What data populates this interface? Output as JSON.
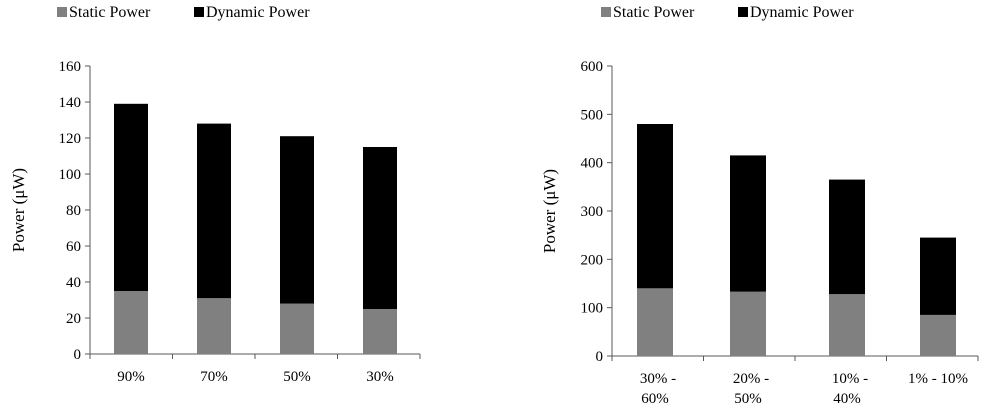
{
  "colors": {
    "static": "#808080",
    "dynamic": "#000000",
    "axis": "#595959"
  },
  "chart_data": [
    {
      "type": "bar",
      "stacked": true,
      "categories": [
        "90%",
        "70%",
        "50%",
        "30%"
      ],
      "series": [
        {
          "name": "Static Power",
          "values": [
            35,
            31,
            28,
            25
          ]
        },
        {
          "name": "Dynamic Power",
          "values": [
            104,
            97,
            93,
            90
          ]
        }
      ],
      "ylabel": "Power (μW)",
      "ylim": [
        0,
        160
      ],
      "yticks": [
        "0",
        "20",
        "40",
        "60",
        "80",
        "100",
        "120",
        "140",
        "160"
      ],
      "legend": "top-left",
      "grid": false
    },
    {
      "type": "bar",
      "stacked": true,
      "categories": [
        [
          "30% -",
          "60%"
        ],
        [
          "20% -",
          "50%"
        ],
        [
          "10% -",
          "40%"
        ],
        [
          "1% - 10%"
        ]
      ],
      "series": [
        {
          "name": "Static Power",
          "values": [
            140,
            133,
            128,
            85
          ]
        },
        {
          "name": "Dynamic Power",
          "values": [
            340,
            282,
            237,
            160
          ]
        }
      ],
      "ylabel": "Power (μW)",
      "ylim": [
        0,
        600
      ],
      "yticks": [
        "0",
        "100",
        "200",
        "300",
        "400",
        "500",
        "600"
      ],
      "legend": "top-left",
      "grid": false
    }
  ]
}
